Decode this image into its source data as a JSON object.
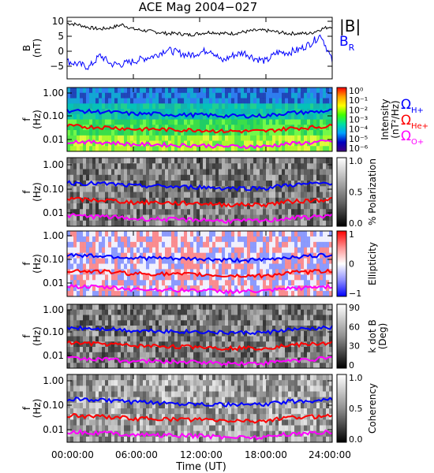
{
  "title": "ACE Mag 2004−027",
  "xaxis": {
    "label": "Time (UT)",
    "ticks": [
      "00:00:00",
      "06:00:00",
      "12:00:00",
      "18:00:00",
      "24:00:00"
    ],
    "range_hours": [
      0,
      24
    ]
  },
  "legend_top": {
    "b_total": "|B|",
    "b_r": "B",
    "b_r_sub": "R",
    "b_total_color": "#000000",
    "b_r_color": "#0000ff"
  },
  "legend_gyro": [
    {
      "sym": "Ω",
      "sub": "H+",
      "color": "#0000ff"
    },
    {
      "sym": "Ω",
      "sub": "He+",
      "color": "#ff0000"
    },
    {
      "sym": "Ω",
      "sub": "O+",
      "color": "#ff00ff"
    }
  ],
  "panels": [
    {
      "id": "bfield",
      "ylabel1": "B",
      "ylabel2": "(nT)",
      "yticks": [
        "10",
        "5",
        "0",
        "−5"
      ]
    },
    {
      "id": "intensity",
      "ylabel1": "f",
      "ylabel2": "(Hz)",
      "yticks": [
        "1.00",
        "0.10",
        "0.01"
      ],
      "cbar_label1": "Intensity",
      "cbar_label2": "(nT²/Hz)",
      "cbar_ticks": [
        "10⁰",
        "10⁻¹",
        "10⁻²",
        "10⁻³",
        "10⁻⁴",
        "10⁻⁵",
        "10⁻⁶"
      ]
    },
    {
      "id": "polarization",
      "ylabel1": "f",
      "ylabel2": "(Hz)",
      "yticks": [
        "1.00",
        "0.10",
        "0.01"
      ],
      "cbar_label1": "% Polarization",
      "cbar_label2": "",
      "cbar_ticks": [
        "1.0",
        "0.5",
        "0.0"
      ]
    },
    {
      "id": "ellipticity",
      "ylabel1": "f",
      "ylabel2": "(Hz)",
      "yticks": [
        "1.00",
        "0.10",
        "0.01"
      ],
      "cbar_label1": "Ellipticity",
      "cbar_label2": "",
      "cbar_ticks": [
        "1",
        "0",
        "−1"
      ]
    },
    {
      "id": "kdotb",
      "ylabel1": "f",
      "ylabel2": "(Hz)",
      "yticks": [
        "1.00",
        "0.10",
        "0.01"
      ],
      "cbar_label1": "k dot B",
      "cbar_label2": "(Deg)",
      "cbar_ticks": [
        "90",
        "60",
        "30",
        "0"
      ]
    },
    {
      "id": "coherency",
      "ylabel1": "f",
      "ylabel2": "(Hz)",
      "yticks": [
        "1.00",
        "0.10",
        "0.01"
      ],
      "cbar_label1": "Coherency",
      "cbar_label2": "",
      "cbar_ticks": [
        "1.0",
        "0.5",
        "0.0"
      ]
    }
  ],
  "chart_data": [
    {
      "type": "line",
      "title": "ACE Mag 2004−027",
      "ylabel": "B (nT)",
      "xlabel": "Time (UT)",
      "ylim": [
        -9,
        12
      ],
      "x": [
        0,
        1,
        2,
        3,
        4,
        5,
        6,
        7,
        8,
        9,
        10,
        11,
        12,
        13,
        14,
        15,
        16,
        17,
        18,
        19,
        20,
        21,
        22,
        23,
        24
      ],
      "series": [
        {
          "name": "|B|",
          "color": "#000000",
          "values": [
            10,
            9.5,
            8.5,
            8,
            8.5,
            9.5,
            8,
            7.5,
            7,
            6.5,
            6.5,
            6,
            6.5,
            7,
            6.5,
            6.5,
            7,
            7.5,
            7.5,
            7,
            6.5,
            6.5,
            6.5,
            8,
            9
          ]
        },
        {
          "name": "BR",
          "color": "#0000ff",
          "values": [
            -3,
            -4,
            -5,
            -1,
            -4,
            -4,
            -3,
            -2,
            -1,
            1,
            0,
            -1,
            0,
            1,
            -3,
            -1,
            0,
            -2,
            -3,
            0,
            0,
            1,
            3,
            6,
            -3
          ]
        }
      ]
    },
    {
      "type": "heatmap",
      "panels": [
        "Intensity",
        "% Polarization",
        "Ellipticity",
        "k dot B",
        "Coherency"
      ],
      "ylabel": "f (Hz)",
      "yscale": "log",
      "ylim": [
        0.004,
        1.3
      ],
      "x": [
        0,
        2,
        4,
        6,
        8,
        10,
        12,
        14,
        16,
        18,
        20,
        22,
        24
      ],
      "overlays": [
        {
          "name": "ΩH+",
          "color": "#0000ff",
          "values": [
            0.16,
            0.15,
            0.14,
            0.12,
            0.12,
            0.11,
            0.11,
            0.1,
            0.1,
            0.1,
            0.13,
            0.14,
            0.16
          ]
        },
        {
          "name": "ΩHe+",
          "color": "#ff0000",
          "values": [
            0.04,
            0.037,
            0.035,
            0.03,
            0.03,
            0.028,
            0.028,
            0.025,
            0.025,
            0.025,
            0.032,
            0.035,
            0.04
          ]
        },
        {
          "name": "ΩO+",
          "color": "#ff00ff",
          "values": [
            0.01,
            0.0093,
            0.0088,
            0.0075,
            0.0075,
            0.007,
            0.007,
            0.0063,
            0.0063,
            0.0063,
            0.008,
            0.0088,
            0.01
          ]
        }
      ]
    }
  ]
}
